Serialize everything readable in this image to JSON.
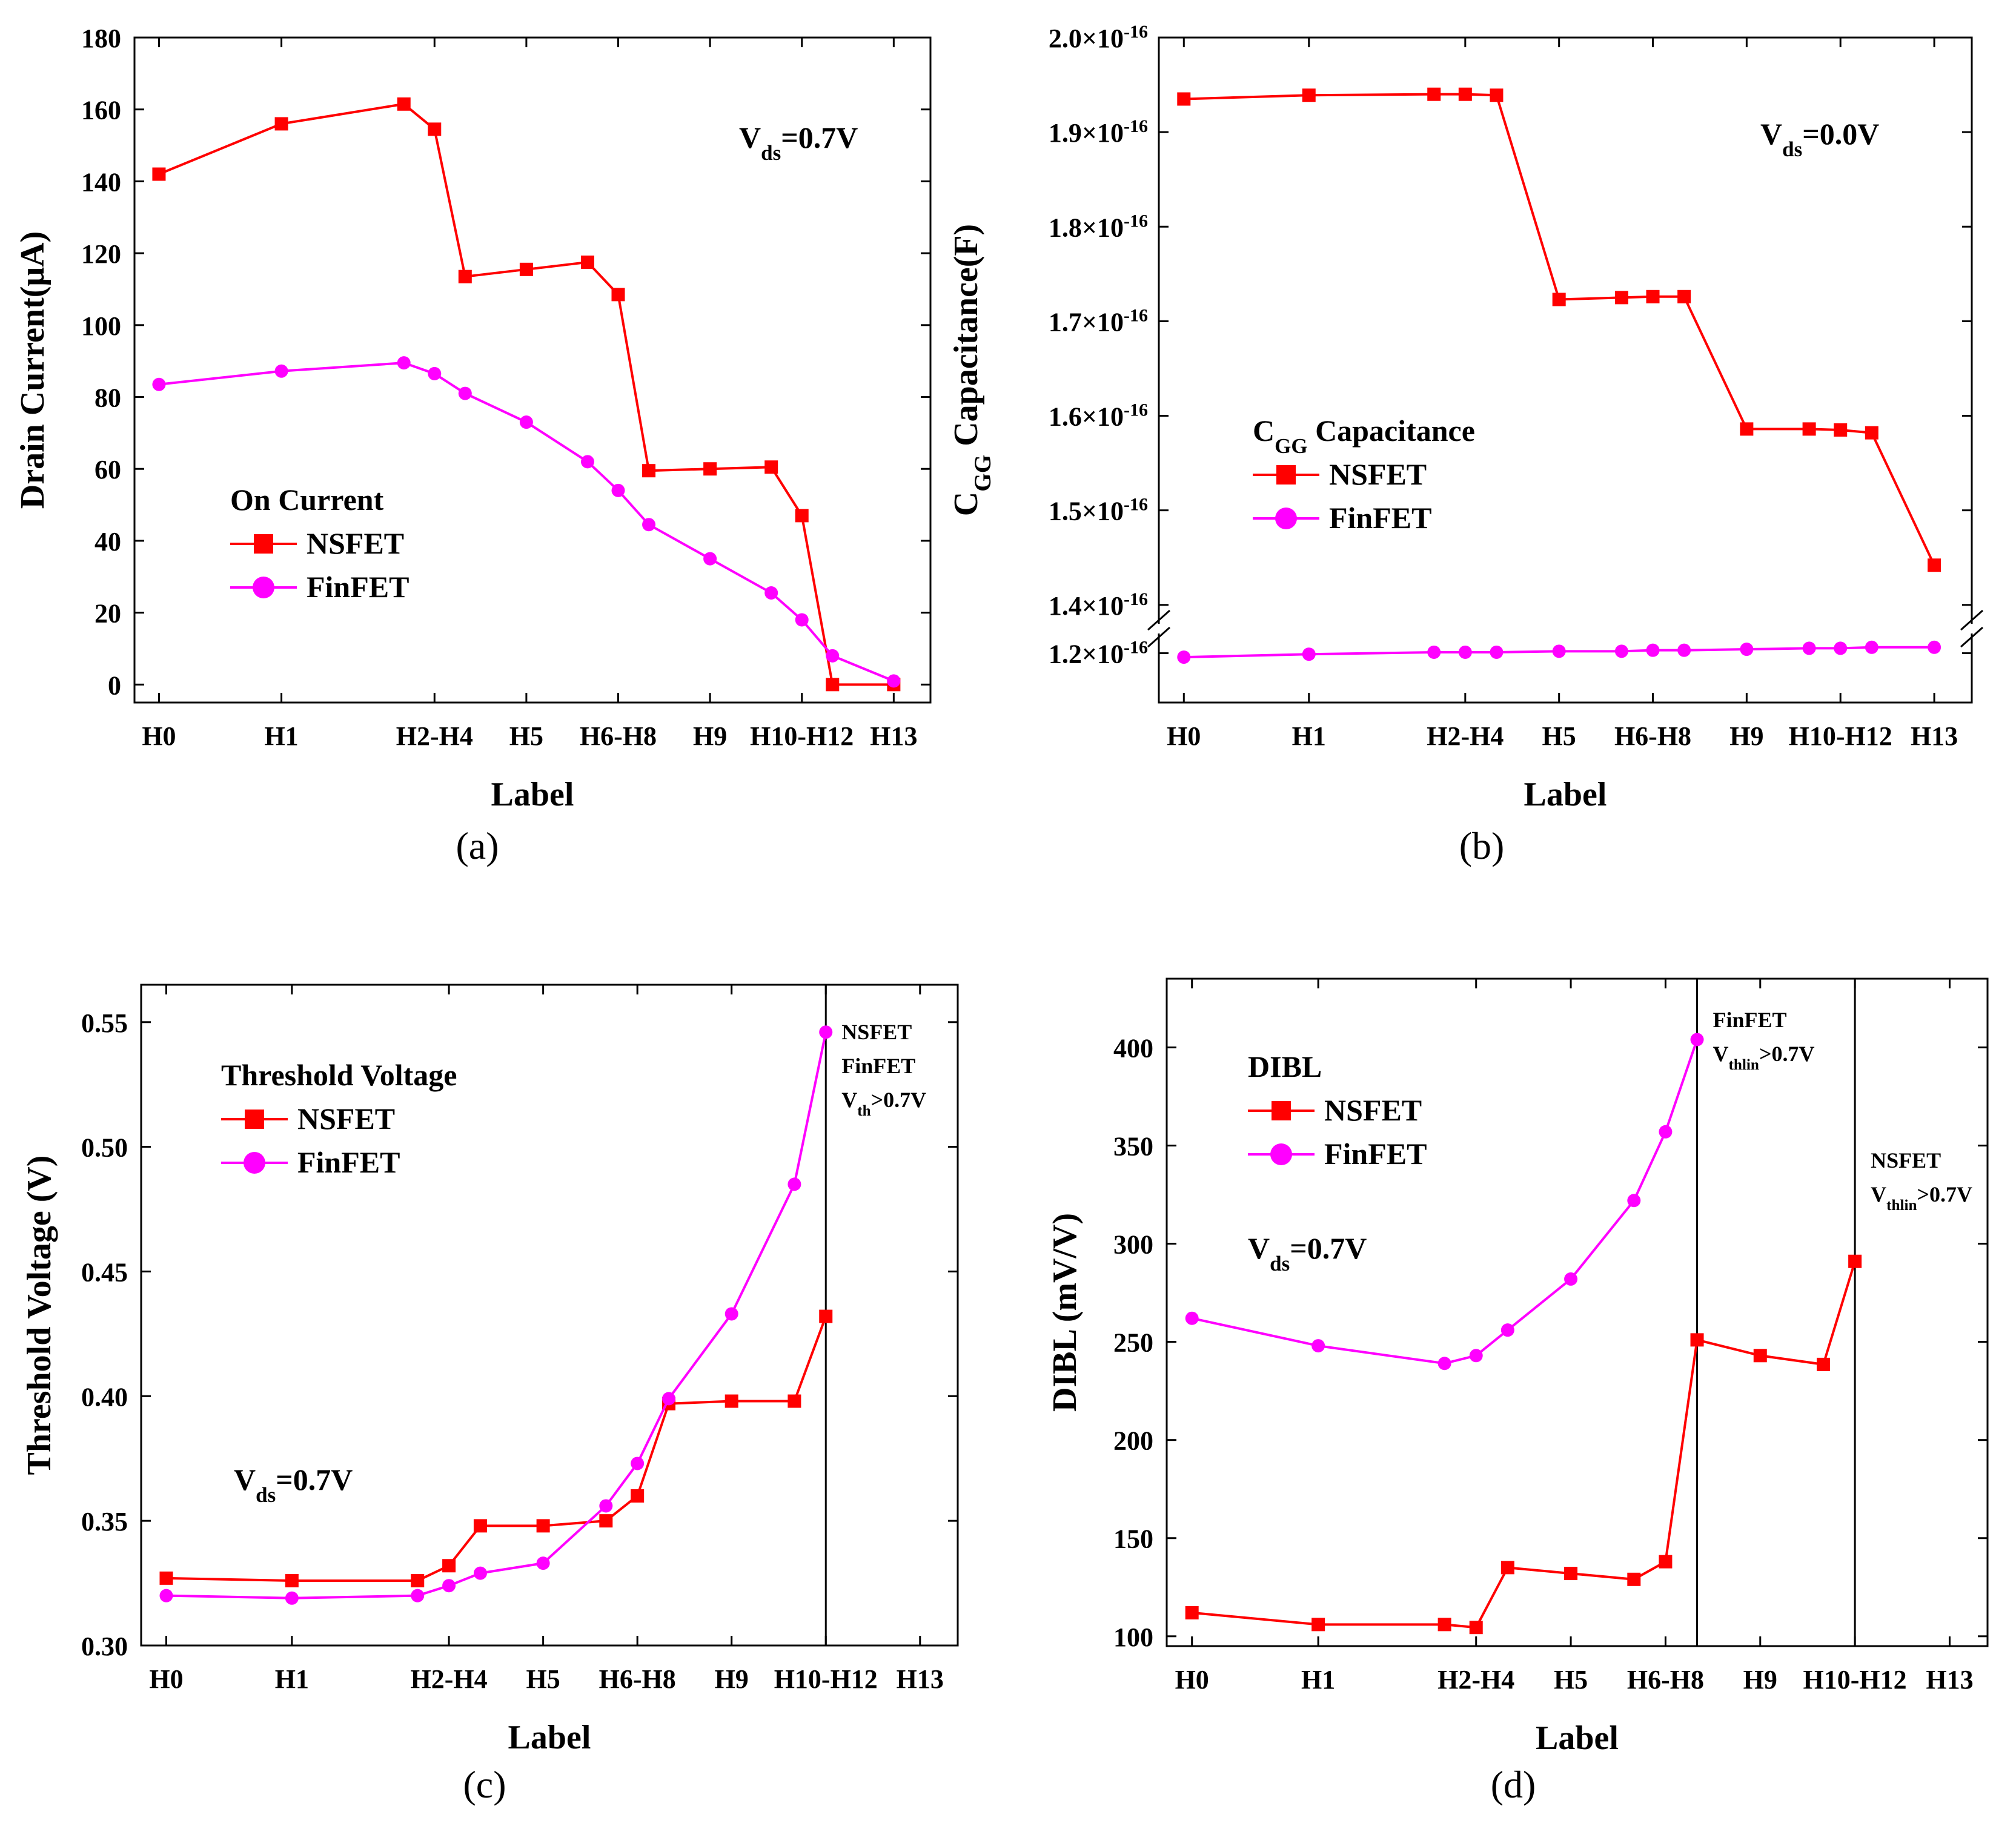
{
  "colors": {
    "nsfet": "#ff0000",
    "finfet": "#ff00ff",
    "axis": "#000000"
  },
  "chart_data": [
    {
      "id": "a",
      "type": "line",
      "caption": "(a)",
      "xlabel": "Label",
      "ylabel": "Drain Current(μA)",
      "ylim": [
        -5,
        180
      ],
      "yticks": [
        0,
        20,
        40,
        60,
        80,
        100,
        120,
        140,
        160,
        180
      ],
      "xlim": [
        -0.4,
        12.6
      ],
      "categories": [
        "H0",
        "H1",
        "H2-H4",
        "H5",
        "H6-H8",
        "H9",
        "H10-H12",
        "H13"
      ],
      "category_x": [
        0,
        2,
        4.5,
        6,
        7.5,
        9,
        10.5,
        12
      ],
      "legend_title": "On Current",
      "annotation": {
        "main": "V",
        "sub": "ds",
        "rest": "=0.7V"
      },
      "series": [
        {
          "name": "NSFET",
          "marker": "square",
          "color_key": "nsfet",
          "x": [
            0,
            2,
            4,
            4.5,
            5,
            6,
            7,
            7.5,
            8,
            9,
            10,
            10.5,
            11,
            12
          ],
          "values": [
            142,
            156,
            161.5,
            154.5,
            113.5,
            115.5,
            117.5,
            108.5,
            59.5,
            60,
            60.5,
            47,
            0,
            0
          ]
        },
        {
          "name": "FinFET",
          "marker": "circle",
          "color_key": "finfet",
          "x": [
            0,
            2,
            4,
            4.5,
            5,
            6,
            7,
            7.5,
            8,
            9,
            10,
            10.5,
            11,
            12
          ],
          "values": [
            83.5,
            87.2,
            89.5,
            86.5,
            81,
            73,
            62,
            54,
            44.5,
            35,
            25.5,
            18,
            8,
            1
          ]
        }
      ]
    },
    {
      "id": "b",
      "type": "line",
      "caption": "(b)",
      "xlabel": "Label",
      "ylabel": "Capacitance(F)",
      "ylabel_prefix": {
        "main": "C",
        "sub": "GG"
      },
      "ylim": [
        1.15,
        2.0
      ],
      "yticks": [
        1.2,
        1.4,
        1.5,
        1.6,
        1.7,
        1.8,
        1.9,
        2.0
      ],
      "ytick_labels": [
        "1.2×10",
        "1.4×10",
        "1.5×10",
        "1.6×10",
        "1.7×10",
        "1.8×10",
        "1.9×10",
        "2.0×10"
      ],
      "ytick_exponent": "-16",
      "axis_break": [
        1.22,
        1.38
      ],
      "xlim": [
        -0.4,
        12.6
      ],
      "categories": [
        "H0",
        "H1",
        "H2-H4",
        "H5",
        "H6-H8",
        "H9",
        "H10-H12",
        "H13"
      ],
      "category_x": [
        0,
        2,
        4.5,
        6,
        7.5,
        9,
        10.5,
        12
      ],
      "legend_title": {
        "main": "C",
        "sub": "GG",
        "rest": " Capacitance"
      },
      "annotation": {
        "main": "V",
        "sub": "ds",
        "rest": "=0.0V"
      },
      "series": [
        {
          "name": "NSFET",
          "marker": "square",
          "color_key": "nsfet",
          "x": [
            0,
            2,
            4,
            4.5,
            5,
            6,
            7,
            7.5,
            8,
            9,
            10,
            10.5,
            11,
            12
          ],
          "values": [
            1.935,
            1.939,
            1.94,
            1.94,
            1.939,
            1.723,
            1.725,
            1.726,
            1.726,
            1.586,
            1.586,
            1.585,
            1.582,
            1.442
          ]
        },
        {
          "name": "FinFET",
          "marker": "circle",
          "color_key": "finfet",
          "x": [
            0,
            2,
            4,
            4.5,
            5,
            6,
            7,
            7.5,
            8,
            9,
            10,
            10.5,
            11,
            12
          ],
          "values": [
            1.196,
            1.199,
            1.201,
            1.201,
            1.201,
            1.202,
            1.202,
            1.203,
            1.203,
            1.204,
            1.205,
            1.205,
            1.206,
            1.206
          ]
        }
      ]
    },
    {
      "id": "c",
      "type": "line",
      "caption": "(c)",
      "xlabel": "Label",
      "ylabel": "Threshold Voltage (V)",
      "ylim": [
        0.3,
        0.565
      ],
      "yticks": [
        0.3,
        0.35,
        0.4,
        0.45,
        0.5,
        0.55
      ],
      "ytick_labels": [
        "0.30",
        "0.35",
        "0.40",
        "0.45",
        "0.50",
        "0.55"
      ],
      "xlim": [
        -0.4,
        12.6
      ],
      "categories": [
        "H0",
        "H1",
        "H2-H4",
        "H5",
        "H6-H8",
        "H9",
        "H10-H12",
        "H13"
      ],
      "category_x": [
        0,
        2,
        4.5,
        6,
        7.5,
        9,
        10.5,
        12
      ],
      "legend_title": "Threshold Voltage",
      "annotation": {
        "main": "V",
        "sub": "ds",
        "rest": "=0.7V"
      },
      "vlines": [
        10.5
      ],
      "region_notes": [
        {
          "at_x": 10.5,
          "lines": [
            {
              "main": "NSFET"
            },
            {
              "main": "FinFET"
            },
            {
              "main": "V",
              "sub": "th",
              "rest": ">0.7V"
            }
          ]
        }
      ],
      "series": [
        {
          "name": "NSFET",
          "marker": "square",
          "color_key": "nsfet",
          "x": [
            0,
            2,
            4,
            4.5,
            5,
            6,
            7,
            7.5,
            8,
            9,
            10,
            10.5
          ],
          "values": [
            0.327,
            0.326,
            0.326,
            0.332,
            0.348,
            0.348,
            0.35,
            0.36,
            0.397,
            0.398,
            0.398,
            0.432
          ]
        },
        {
          "name": "FinFET",
          "marker": "circle",
          "color_key": "finfet",
          "x": [
            0,
            2,
            4,
            4.5,
            5,
            6,
            7,
            7.5,
            8,
            9,
            10,
            10.5
          ],
          "values": [
            0.32,
            0.319,
            0.32,
            0.324,
            0.329,
            0.333,
            0.356,
            0.373,
            0.399,
            0.433,
            0.485,
            0.546
          ]
        }
      ]
    },
    {
      "id": "d",
      "type": "line",
      "caption": "(d)",
      "xlabel": "Label",
      "ylabel": "DIBL (mV/V)",
      "ylim": [
        95,
        435
      ],
      "yticks": [
        100,
        150,
        200,
        250,
        300,
        350,
        400
      ],
      "xlim": [
        -0.4,
        12.6
      ],
      "categories": [
        "H0",
        "H1",
        "H2-H4",
        "H5",
        "H6-H8",
        "H9",
        "H10-H12",
        "H13"
      ],
      "category_x": [
        0,
        2,
        4.5,
        6,
        7.5,
        9,
        10.5,
        12
      ],
      "legend_title": "DIBL",
      "annotation": {
        "main": "V",
        "sub": "ds",
        "rest": "=0.7V"
      },
      "vlines": [
        8,
        10.5
      ],
      "region_notes": [
        {
          "at_x": 8,
          "lines": [
            {
              "main": "FinFET"
            },
            {
              "main": "V",
              "sub": "thlin",
              "rest": ">0.7V"
            }
          ]
        },
        {
          "at_x": 10.5,
          "lines": [
            {
              "main": "NSFET"
            },
            {
              "main": "V",
              "sub": "thlin",
              "rest": ">0.7V"
            }
          ]
        }
      ],
      "series": [
        {
          "name": "NSFET",
          "marker": "square",
          "color_key": "nsfet",
          "x": [
            0,
            2,
            4,
            4.5,
            5,
            6,
            7,
            7.5,
            8,
            9,
            10,
            10.5
          ],
          "values": [
            112,
            106,
            106,
            104.5,
            135,
            132,
            129,
            138,
            251,
            243,
            238.5,
            291
          ]
        },
        {
          "name": "FinFET",
          "marker": "circle",
          "color_key": "finfet",
          "x": [
            0,
            2,
            4,
            4.5,
            5,
            6,
            7,
            7.5,
            8
          ],
          "values": [
            262,
            248,
            239,
            243,
            256,
            282,
            322,
            357,
            404
          ]
        }
      ]
    }
  ]
}
